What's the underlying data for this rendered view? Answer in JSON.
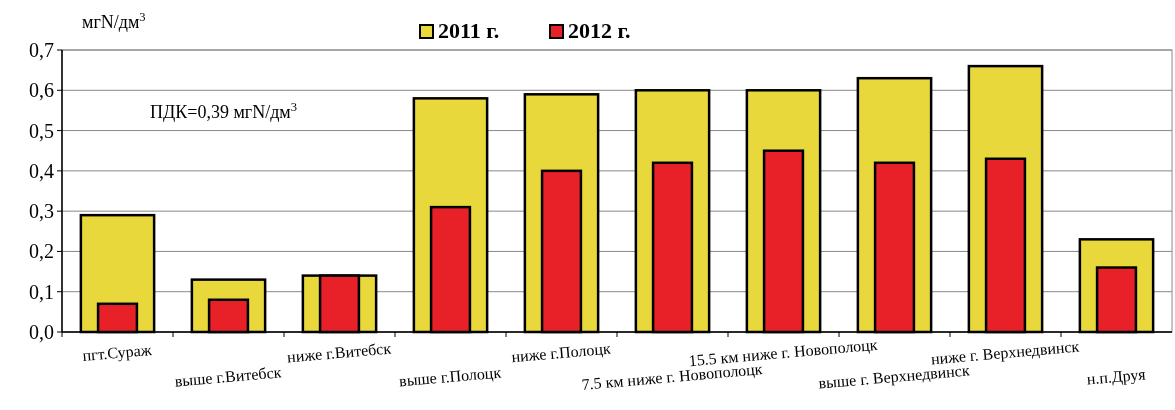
{
  "chart_data": {
    "type": "bar",
    "ylabel": "мгN/дм$^{3}$",
    "annotations": [
      "ПДК=0,39 мгN/дм$^{3}$"
    ],
    "categories": [
      "пгт.Сураж",
      "выше г.Витебск",
      "ниже г.Витебск",
      "выше г.Полоцк",
      "ниже г.Полоцк",
      "7.5 км ниже г. Новополоцк",
      "15.5 км ниже г. Новополоцк",
      "выше г. Верхнедвинск",
      "ниже г. Верхнедвинск",
      "н.п.Друя"
    ],
    "series": [
      {
        "name": "2011 г.",
        "color": "#e8d83c",
        "values": [
          0.29,
          0.13,
          0.14,
          0.58,
          0.59,
          0.6,
          0.6,
          0.63,
          0.66,
          0.23
        ]
      },
      {
        "name": "2012 г.",
        "color": "#e82028",
        "values": [
          0.07,
          0.08,
          0.14,
          0.31,
          0.4,
          0.42,
          0.45,
          0.42,
          0.43,
          0.16
        ]
      }
    ],
    "ylim": [
      0,
      0.7
    ],
    "yticks": [
      {
        "value": 0,
        "label": "0,0"
      },
      {
        "value": 0.1,
        "label": "0,1"
      },
      {
        "value": 0.2,
        "label": "0,2"
      },
      {
        "value": 0.3,
        "label": "0,3"
      },
      {
        "value": 0.4,
        "label": "0,4"
      },
      {
        "value": 0.5,
        "label": "0,5"
      },
      {
        "value": 0.6,
        "label": "0,6"
      },
      {
        "value": 0.7,
        "label": "0,7"
      }
    ],
    "grid": "y",
    "legend": "top"
  }
}
